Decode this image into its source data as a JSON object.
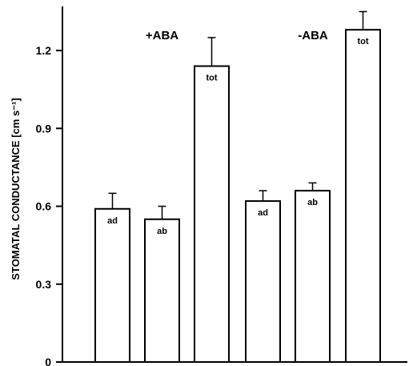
{
  "chart_data": {
    "type": "bar",
    "title": "",
    "xlabel": "",
    "ylabel": "STOMATAL CONDUCTANCE [cm s⁻¹]",
    "ylim": [
      0,
      1.37
    ],
    "yticks": [
      "0",
      "0.3",
      "0.6",
      "0.9",
      "1.2"
    ],
    "grid": false,
    "groups": [
      {
        "name": "+ABA",
        "bars": [
          {
            "label": "ad",
            "value": 0.59,
            "error": 0.06
          },
          {
            "label": "ab",
            "value": 0.55,
            "error": 0.05
          },
          {
            "label": "tot",
            "value": 1.14,
            "error": 0.11
          }
        ]
      },
      {
        "name": "-ABA",
        "bars": [
          {
            "label": "ad",
            "value": 0.62,
            "error": 0.04
          },
          {
            "label": "ab",
            "value": 0.66,
            "error": 0.03
          },
          {
            "label": "tot",
            "value": 1.28,
            "error": 0.07
          }
        ]
      }
    ]
  }
}
